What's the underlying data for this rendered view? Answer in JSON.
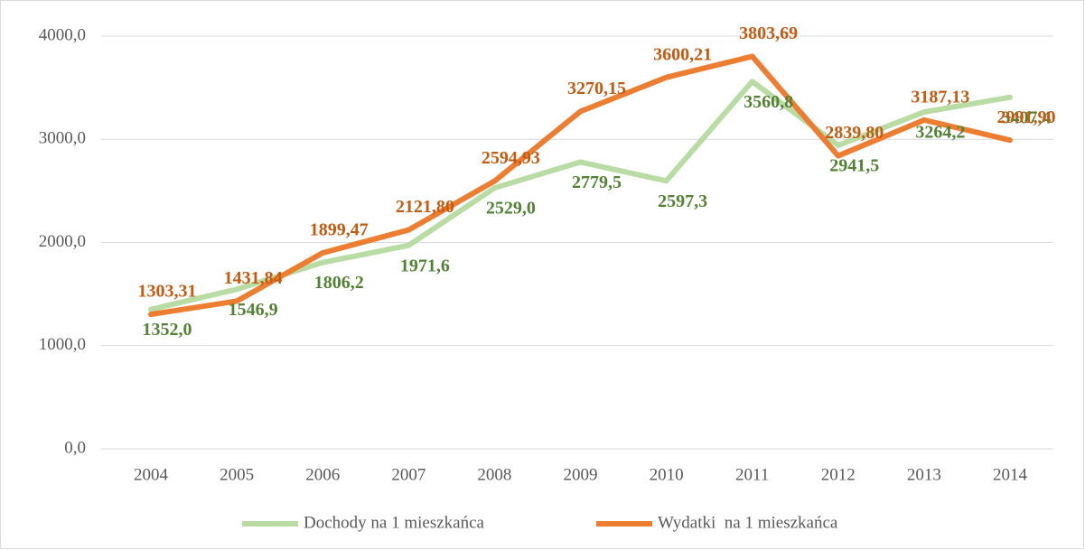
{
  "chart_data": {
    "type": "line",
    "categories": [
      "2004",
      "2005",
      "2006",
      "2007",
      "2008",
      "2009",
      "2010",
      "2011",
      "2012",
      "2013",
      "2014"
    ],
    "series": [
      {
        "name": "Dochody na 1 mieszkańca",
        "color": "#b9dca4",
        "label_color": "#548235",
        "values": [
          1352.0,
          1546.9,
          1806.2,
          1971.6,
          2529.0,
          2779.5,
          2597.3,
          3560.8,
          2941.5,
          3264.2,
          3407.4
        ],
        "value_labels": [
          "1352,0",
          "1546,9",
          "1806,2",
          "1971,6",
          "2529,0",
          "2779,5",
          "2597,3",
          "3560,8",
          "2941,5",
          "3264,2",
          "3407,4"
        ]
      },
      {
        "name": "Wydatki  na 1 mieszkańca",
        "color": "#ed7d31",
        "label_color": "#c55a11",
        "values": [
          1303.31,
          1431.84,
          1899.47,
          2121.8,
          2594.93,
          3270.15,
          3600.21,
          3803.69,
          2839.8,
          3187.13,
          2991.9
        ],
        "value_labels": [
          "1303,31",
          "1431,84",
          "1899,47",
          "2121,80",
          "2594,93",
          "3270,15",
          "3600,21",
          "3803,69",
          "2839,80",
          "3187,13",
          "2991,90"
        ]
      }
    ],
    "ylim": [
      0,
      4000
    ],
    "yticks": [
      {
        "value": 0,
        "label": "0,0"
      },
      {
        "value": 1000,
        "label": "1000,0"
      },
      {
        "value": 2000,
        "label": "2000,0"
      },
      {
        "value": 3000,
        "label": "3000,0"
      },
      {
        "value": 4000,
        "label": "4000,0"
      }
    ],
    "grid": true,
    "legend": "bottom"
  }
}
